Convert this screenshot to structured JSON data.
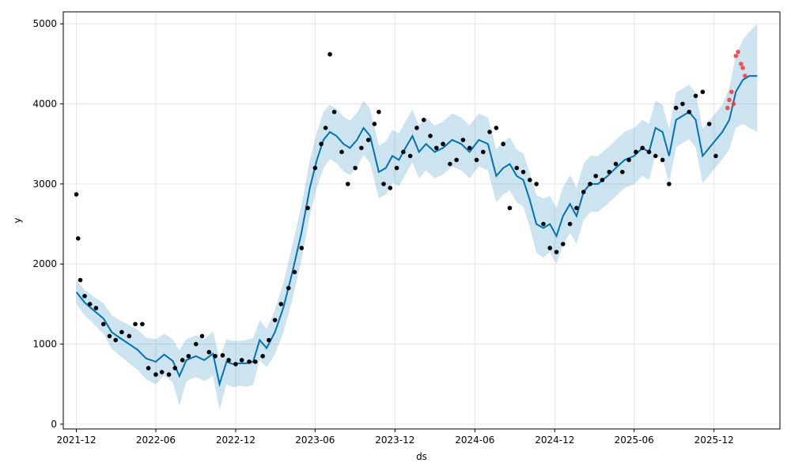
{
  "chart_data": {
    "type": "line",
    "title": "",
    "xlabel": "ds",
    "ylabel": "y",
    "x_ticks": [
      "2021-12",
      "2022-06",
      "2022-12",
      "2023-06",
      "2023-12",
      "2024-06",
      "2024-12",
      "2025-06",
      "2025-12"
    ],
    "y_ticks": [
      0,
      1000,
      2000,
      3000,
      4000,
      5000
    ],
    "xlim": [
      "2021-11-01",
      "2026-05-01"
    ],
    "ylim": [
      -60,
      5150
    ],
    "grid": true,
    "colors": {
      "forecast_line": "#0072B2",
      "uncertainty_band": "#0072B2",
      "observed_points": "#000000",
      "recent_points": "#ff3333"
    },
    "series": [
      {
        "kind": "forecast",
        "x": [
          "2021-12-01",
          "2021-12-20",
          "2022-01-10",
          "2022-02-01",
          "2022-02-20",
          "2022-03-10",
          "2022-04-01",
          "2022-04-20",
          "2022-05-10",
          "2022-06-01",
          "2022-06-20",
          "2022-07-10",
          "2022-07-25",
          "2022-08-10",
          "2022-09-01",
          "2022-09-20",
          "2022-10-10",
          "2022-10-25",
          "2022-11-10",
          "2022-11-25",
          "2022-12-10",
          "2022-12-25",
          "2023-01-10",
          "2023-01-25",
          "2023-02-10",
          "2023-03-01",
          "2023-03-20",
          "2023-04-10",
          "2023-05-01",
          "2023-05-20",
          "2023-06-05",
          "2023-06-20",
          "2023-07-05",
          "2023-07-20",
          "2023-08-05",
          "2023-08-20",
          "2023-09-05",
          "2023-09-20",
          "2023-10-05",
          "2023-10-25",
          "2023-11-10",
          "2023-11-25",
          "2023-12-10",
          "2023-12-25",
          "2024-01-10",
          "2024-01-25",
          "2024-02-10",
          "2024-03-01",
          "2024-03-20",
          "2024-04-10",
          "2024-05-01",
          "2024-05-20",
          "2024-06-10",
          "2024-07-01",
          "2024-07-20",
          "2024-08-05",
          "2024-08-20",
          "2024-09-05",
          "2024-09-20",
          "2024-10-05",
          "2024-10-20",
          "2024-11-05",
          "2024-11-20",
          "2024-12-05",
          "2024-12-20",
          "2025-01-05",
          "2025-01-20",
          "2025-02-05",
          "2025-02-20",
          "2025-03-10",
          "2025-04-01",
          "2025-04-20",
          "2025-05-10",
          "2025-06-01",
          "2025-06-20",
          "2025-07-05",
          "2025-07-20",
          "2025-08-05",
          "2025-08-20",
          "2025-09-05",
          "2025-09-20",
          "2025-10-05",
          "2025-10-20",
          "2025-11-05",
          "2025-11-20",
          "2025-12-05",
          "2025-12-20",
          "2026-01-05",
          "2026-01-20",
          "2026-02-05",
          "2026-02-20",
          "2026-03-10"
        ],
        "y": [
          1650,
          1520,
          1420,
          1320,
          1150,
          1080,
          1000,
          930,
          820,
          780,
          870,
          790,
          600,
          800,
          850,
          800,
          880,
          500,
          780,
          750,
          760,
          760,
          780,
          1050,
          950,
          1150,
          1450,
          1900,
          2400,
          2950,
          3300,
          3550,
          3650,
          3600,
          3500,
          3450,
          3550,
          3700,
          3600,
          3150,
          3200,
          3350,
          3300,
          3450,
          3600,
          3400,
          3500,
          3400,
          3450,
          3550,
          3500,
          3400,
          3550,
          3500,
          3100,
          3200,
          3250,
          3100,
          3050,
          2800,
          2500,
          2450,
          2500,
          2350,
          2600,
          2750,
          2600,
          2900,
          3000,
          3000,
          3100,
          3200,
          3300,
          3350,
          3450,
          3400,
          3700,
          3650,
          3350,
          3800,
          3850,
          3900,
          3800,
          3350,
          3450,
          3550,
          3650,
          3800,
          4150,
          4300,
          4350,
          4350
        ],
        "lower": [
          1500,
          1360,
          1250,
          1130,
          940,
          860,
          760,
          680,
          560,
          500,
          610,
          520,
          230,
          540,
          590,
          540,
          600,
          180,
          500,
          460,
          480,
          470,
          490,
          800,
          710,
          870,
          1140,
          1560,
          2060,
          2600,
          2960,
          3200,
          3310,
          3260,
          3160,
          3110,
          3210,
          3360,
          3260,
          2820,
          2870,
          3020,
          2970,
          3120,
          3270,
          3070,
          3170,
          3070,
          3120,
          3220,
          3170,
          3070,
          3220,
          3170,
          2770,
          2870,
          2920,
          2770,
          2720,
          2460,
          2140,
          2080,
          2150,
          2000,
          2240,
          2390,
          2250,
          2550,
          2650,
          2650,
          2750,
          2850,
          2950,
          3000,
          3100,
          3050,
          3360,
          3310,
          3010,
          3460,
          3510,
          3560,
          3460,
          3010,
          3110,
          3210,
          3310,
          3430,
          3700,
          3750,
          3700,
          3650
        ],
        "upper": [
          1800,
          1680,
          1590,
          1510,
          1360,
          1300,
          1240,
          1180,
          1080,
          1060,
          1130,
          1060,
          920,
          1060,
          1110,
          1060,
          1160,
          820,
          1060,
          1040,
          1040,
          1050,
          1070,
          1300,
          1190,
          1430,
          1760,
          2240,
          2740,
          3300,
          3640,
          3900,
          3990,
          3940,
          3840,
          3790,
          3890,
          4040,
          3940,
          3480,
          3530,
          3680,
          3630,
          3780,
          3930,
          3730,
          3830,
          3730,
          3780,
          3880,
          3830,
          3730,
          3880,
          3830,
          3430,
          3530,
          3580,
          3430,
          3380,
          3140,
          2860,
          2820,
          2850,
          2700,
          2960,
          3110,
          2950,
          3250,
          3350,
          3350,
          3450,
          3550,
          3650,
          3700,
          3800,
          3750,
          4040,
          3990,
          3690,
          4140,
          4190,
          4240,
          4140,
          3690,
          3790,
          3890,
          3990,
          4200,
          4600,
          4800,
          4900,
          5000
        ]
      },
      {
        "kind": "observed",
        "x": [
          "2021-12-01",
          "2021-12-05",
          "2021-12-10",
          "2021-12-20",
          "2022-01-01",
          "2022-01-15",
          "2022-02-01",
          "2022-02-15",
          "2022-03-01",
          "2022-03-15",
          "2022-04-01",
          "2022-04-15",
          "2022-05-01",
          "2022-05-15",
          "2022-06-01",
          "2022-06-15",
          "2022-07-01",
          "2022-07-15",
          "2022-08-01",
          "2022-08-15",
          "2022-09-01",
          "2022-09-15",
          "2022-10-01",
          "2022-10-15",
          "2022-11-01",
          "2022-11-15",
          "2022-12-01",
          "2022-12-15",
          "2023-01-01",
          "2023-01-15",
          "2023-02-01",
          "2023-02-15",
          "2023-03-01",
          "2023-03-15",
          "2023-04-01",
          "2023-04-15",
          "2023-05-01",
          "2023-05-15",
          "2023-06-01",
          "2023-06-15",
          "2023-06-25",
          "2023-07-05",
          "2023-07-15",
          "2023-08-01",
          "2023-08-15",
          "2023-09-01",
          "2023-09-15",
          "2023-10-01",
          "2023-10-15",
          "2023-10-25",
          "2023-11-05",
          "2023-11-20",
          "2023-12-05",
          "2023-12-20",
          "2024-01-05",
          "2024-01-20",
          "2024-02-05",
          "2024-02-20",
          "2024-03-05",
          "2024-03-20",
          "2024-04-05",
          "2024-04-20",
          "2024-05-05",
          "2024-05-20",
          "2024-06-05",
          "2024-06-20",
          "2024-07-05",
          "2024-07-20",
          "2024-08-05",
          "2024-08-20",
          "2024-09-05",
          "2024-09-20",
          "2024-10-05",
          "2024-10-20",
          "2024-11-05",
          "2024-11-20",
          "2024-12-05",
          "2024-12-20",
          "2025-01-05",
          "2025-01-20",
          "2025-02-05",
          "2025-02-20",
          "2025-03-05",
          "2025-03-20",
          "2025-04-05",
          "2025-04-20",
          "2025-05-05",
          "2025-05-20",
          "2025-06-05",
          "2025-06-20",
          "2025-07-05",
          "2025-07-20",
          "2025-08-05",
          "2025-08-20",
          "2025-09-05",
          "2025-09-20",
          "2025-10-05",
          "2025-10-20",
          "2025-11-05",
          "2025-11-20",
          "2025-12-05"
        ],
        "y": [
          2870,
          2320,
          1800,
          1600,
          1500,
          1450,
          1250,
          1100,
          1050,
          1150,
          1100,
          1250,
          1250,
          700,
          620,
          650,
          620,
          700,
          800,
          850,
          1000,
          1100,
          900,
          850,
          860,
          800,
          750,
          800,
          780,
          780,
          850,
          1050,
          1300,
          1500,
          1700,
          1900,
          2200,
          2700,
          3200,
          3500,
          3700,
          4620,
          3900,
          3400,
          3000,
          3200,
          3450,
          3550,
          3750,
          3900,
          3000,
          2950,
          3200,
          3400,
          3350,
          3700,
          3800,
          3600,
          3450,
          3500,
          3250,
          3300,
          3550,
          3450,
          3300,
          3400,
          3650,
          3700,
          3500,
          2700,
          3200,
          3150,
          3050,
          3000,
          2500,
          2200,
          2150,
          2250,
          2500,
          2700,
          2900,
          3000,
          3100,
          3050,
          3150,
          3250,
          3150,
          3300,
          3400,
          3450,
          3400,
          3350,
          3300,
          3000,
          3950,
          4000,
          3900,
          4100,
          4150,
          3750,
          3350
        ]
      },
      {
        "kind": "recent",
        "x": [
          "2026-01-01",
          "2026-01-05",
          "2026-01-10",
          "2026-01-15",
          "2026-01-20",
          "2026-01-25",
          "2026-02-01",
          "2026-02-05",
          "2026-02-10"
        ],
        "y": [
          3950,
          4050,
          4150,
          4000,
          4600,
          4650,
          4500,
          4450,
          4350
        ]
      }
    ]
  }
}
